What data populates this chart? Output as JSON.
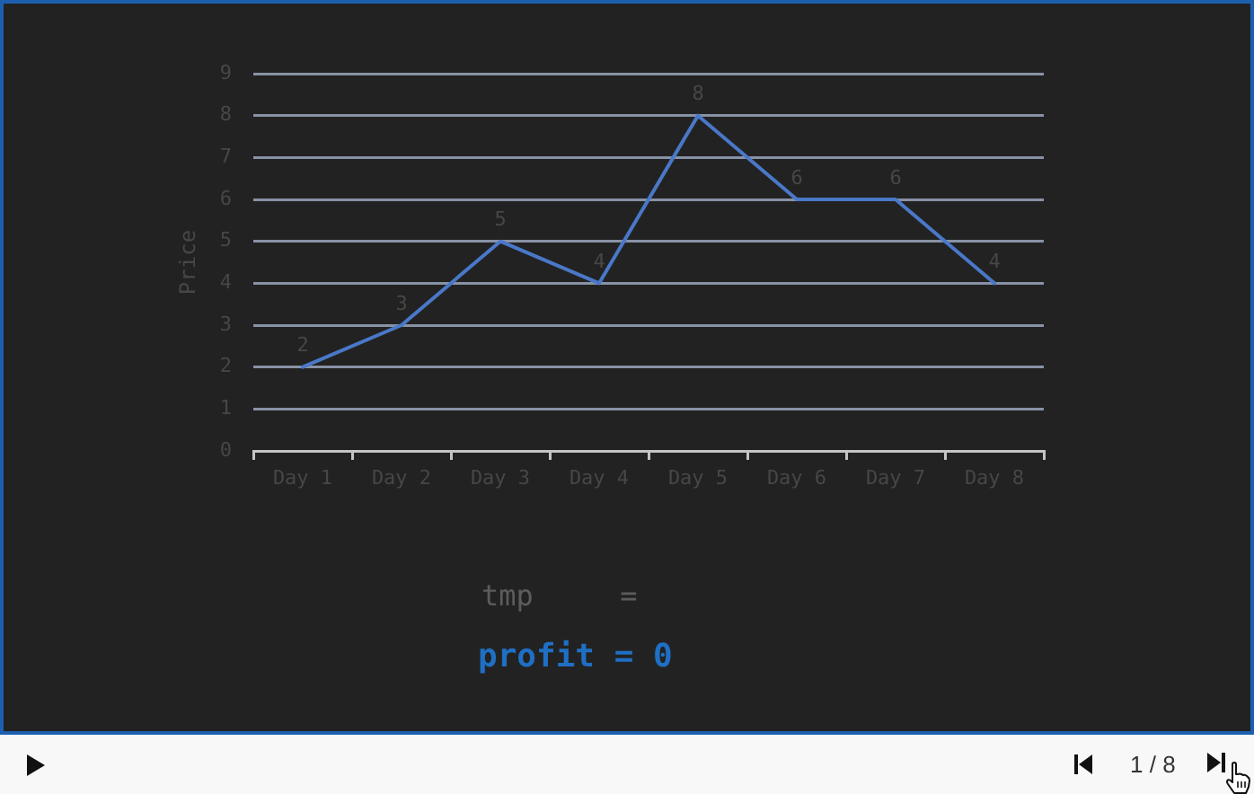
{
  "chart_data": {
    "type": "line",
    "ylabel": "Price",
    "categories": [
      "Day 1",
      "Day 2",
      "Day 3",
      "Day 4",
      "Day 5",
      "Day 6",
      "Day 7",
      "Day 8"
    ],
    "series": [
      {
        "color": "#4a78c8",
        "values": [
          2,
          3,
          5,
          4,
          8,
          6,
          6,
          4
        ]
      }
    ],
    "ylim": [
      0,
      9
    ],
    "yticks": [
      0,
      1,
      2,
      3,
      4,
      5,
      6,
      7,
      8,
      9
    ],
    "grid": "y",
    "legend": false,
    "marker": "none",
    "line_style": "solid",
    "data_labels": true,
    "annotations": [
      "tmp     =",
      "profit = 0",
      "1 / 8"
    ]
  }
}
